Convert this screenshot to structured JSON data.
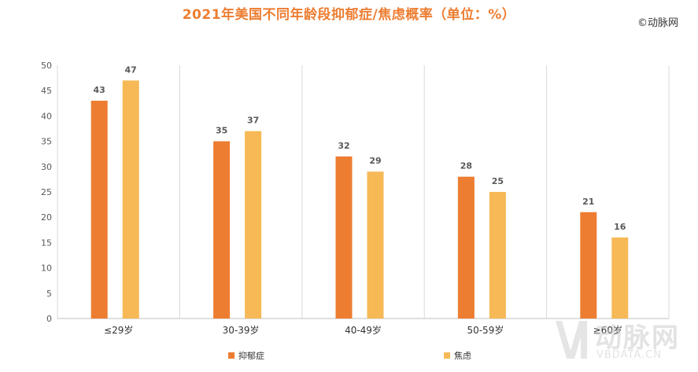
{
  "source_label": "动脉网",
  "watermark": {
    "cn": "动脉网",
    "en": "VBDATA.CN"
  },
  "colors": {
    "series_1": "#ed7d31",
    "series_2": "#f6b956",
    "title": "#ed7d31",
    "grid": "#d9d9d9"
  },
  "chart_data": {
    "type": "bar",
    "title": "2021年美国不同年龄段抑郁症/焦虑概率（单位：%）",
    "xlabel": "",
    "ylabel": "",
    "categories": [
      "≤29岁",
      "30-39岁",
      "40-49岁",
      "50-59岁",
      "≥60岁"
    ],
    "series": [
      {
        "name": "抑郁症",
        "values": [
          43,
          35,
          32,
          28,
          21
        ]
      },
      {
        "name": "焦虑",
        "values": [
          47,
          37,
          29,
          25,
          16
        ]
      }
    ],
    "ylim": [
      0,
      50
    ],
    "yticks": [
      0,
      5,
      10,
      15,
      20,
      25,
      30,
      35,
      40,
      45,
      50
    ],
    "grid": "vertical category separators",
    "legend_position": "bottom"
  }
}
